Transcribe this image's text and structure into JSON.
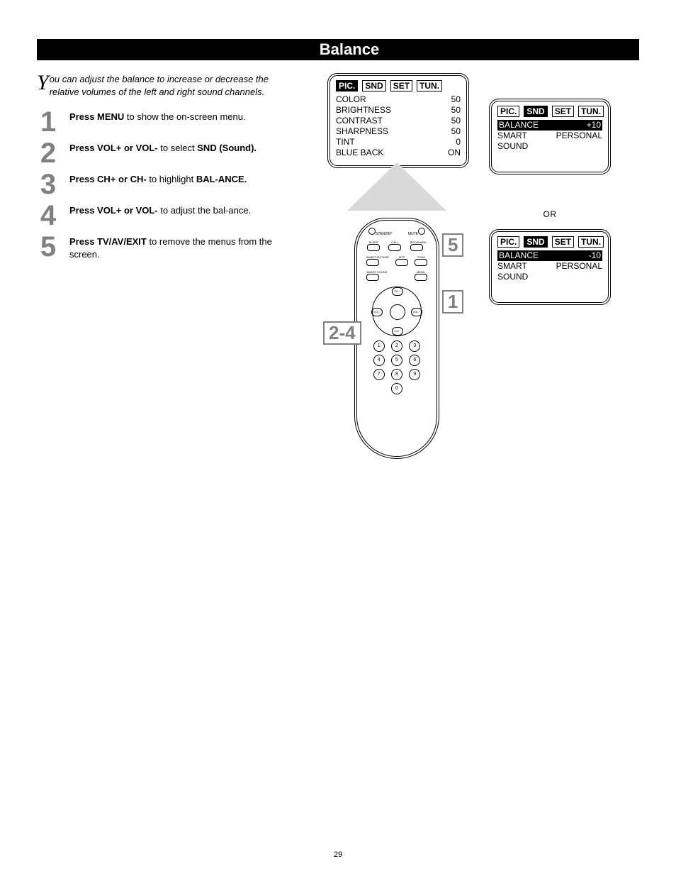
{
  "title": "Balance",
  "intro": {
    "dropcap": "Y",
    "rest": "ou can adjust the balance to increase or decrease the relative volumes of the left and right sound channels."
  },
  "steps": [
    {
      "num": "1",
      "body_html": "<b>Press MENU</b> to show the on-screen menu."
    },
    {
      "num": "2",
      "body_html": "<b>Press VOL+ or VOL-</b> to select <b>SND (Sound).</b>"
    },
    {
      "num": "3",
      "body_html": "<b>Press CH+ or CH-</b> to highlight <b>BAL-ANCE.</b>"
    },
    {
      "num": "4",
      "body_html": "<b>Press VOL+ or VOL-</b> to adjust the bal-ance."
    },
    {
      "num": "5",
      "body_html": "<b>Press TV/AV/EXIT</b> to remove the menus from the screen."
    }
  ],
  "picture_menu": {
    "tabs": [
      {
        "label": "PIC.",
        "inv": true
      },
      {
        "label": "SND",
        "inv": false
      },
      {
        "label": "SET",
        "inv": false
      },
      {
        "label": "TUN.",
        "inv": false
      }
    ],
    "rows": [
      {
        "name": "COLOR",
        "val": "50"
      },
      {
        "name": "BRIGHTNESS",
        "val": "50"
      },
      {
        "name": "CONTRAST",
        "val": "50"
      },
      {
        "name": "SHARPNESS",
        "val": "50"
      },
      {
        "name": "TINT",
        "val": "0"
      },
      {
        "name": "BLUE BACK",
        "val": "ON"
      }
    ]
  },
  "snd_menu_tabs": [
    {
      "label": "PIC.",
      "inv": false
    },
    {
      "label": "SND",
      "inv": true
    },
    {
      "label": "SET",
      "inv": false
    },
    {
      "label": "TUN.",
      "inv": false
    }
  ],
  "snd_menu_a": {
    "balance_label": "BALANCE",
    "balance_val": "+10",
    "smart_label": "SMART SOUND",
    "smart_val": "PERSONAL"
  },
  "snd_menu_b": {
    "balance_label": "BALANCE",
    "balance_val": "-10",
    "smart_label": "SMART SOUND",
    "smart_val": "PERSONAL"
  },
  "or_label": "OR",
  "remote": {
    "standby": "STANDBY",
    "mute": "MUTE",
    "row1": [
      "SLEEP",
      "CALL",
      "BOOKMARK"
    ],
    "row2": [
      "SMART PICTURE",
      "MTS",
      "TV/AV"
    ],
    "row3_left": "SMART SOUND",
    "row3_right": "MENU",
    "nav": {
      "up": "CH +",
      "down": "CH -",
      "left": "VOL -",
      "right": "VOL +"
    },
    "nums": [
      "1",
      "2",
      "3",
      "4",
      "5",
      "6",
      "7",
      "8",
      "9",
      "",
      "0",
      ""
    ]
  },
  "callouts": {
    "five": "5",
    "one": "1",
    "range": "2-4"
  },
  "page_number": "29",
  "colors": {
    "title_bg": "#000000",
    "step_num": "#808080",
    "beam": "#d9d9d9",
    "callout_border": "#808080"
  }
}
